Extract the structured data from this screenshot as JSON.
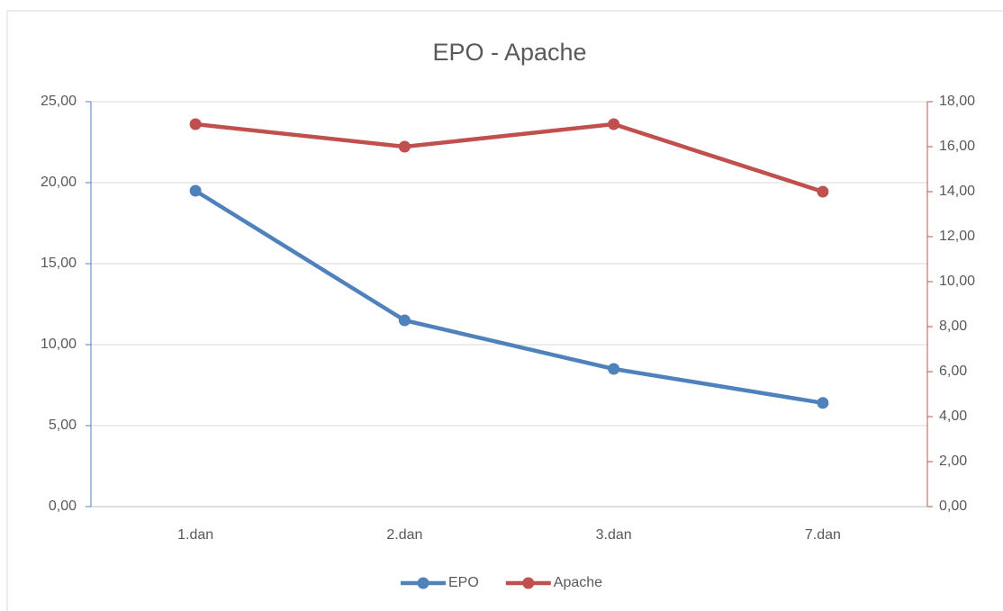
{
  "chart_data": {
    "type": "line",
    "title": "EPO - Apache",
    "categories": [
      "1.dan",
      "2.dan",
      "3.dan",
      "7.dan"
    ],
    "series": [
      {
        "name": "EPO",
        "color": "#4f81bd",
        "values": [
          19.5,
          11.5,
          8.5,
          6.4
        ]
      },
      {
        "name": "Apache",
        "color": "#c0504d",
        "values": [
          17,
          16,
          17,
          14
        ],
        "axis": "y2"
      }
    ],
    "ylim": [
      0,
      25
    ],
    "yticks": [
      {
        "value": 0,
        "label": "0,00"
      },
      {
        "value": 5,
        "label": "5,00"
      },
      {
        "value": 10,
        "label": "10,00"
      },
      {
        "value": 15,
        "label": "15,00"
      },
      {
        "value": 20,
        "label": "20,00"
      },
      {
        "value": 25,
        "label": "25,00"
      }
    ],
    "y2lim": [
      0,
      18
    ],
    "y2ticks": [
      {
        "value": 0,
        "label": "0,00"
      },
      {
        "value": 2,
        "label": "2,00"
      },
      {
        "value": 4,
        "label": "4,00"
      },
      {
        "value": 6,
        "label": "6,00"
      },
      {
        "value": 8,
        "label": "8,00"
      },
      {
        "value": 10,
        "label": "10,00"
      },
      {
        "value": 12,
        "label": "12,00"
      },
      {
        "value": 14,
        "label": "14,00"
      },
      {
        "value": 16,
        "label": "16,00"
      },
      {
        "value": 18,
        "label": "18,00"
      }
    ],
    "grid": true,
    "legend": "bottom"
  }
}
